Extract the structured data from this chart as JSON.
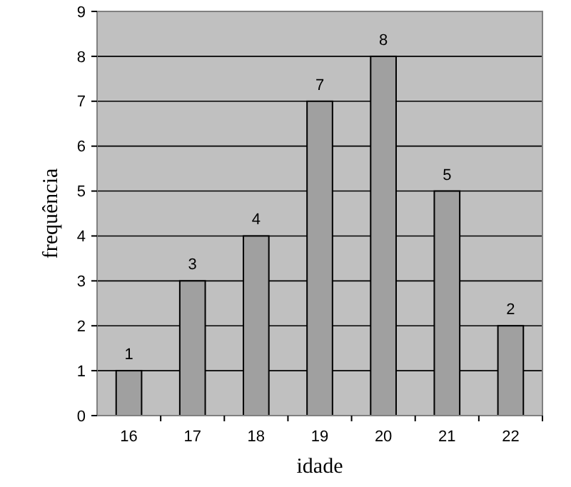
{
  "chart_data": {
    "type": "bar",
    "xlabel": "idade",
    "ylabel": "frequência",
    "categories": [
      "16",
      "17",
      "18",
      "19",
      "20",
      "21",
      "22"
    ],
    "values": [
      1,
      3,
      4,
      7,
      8,
      5,
      2
    ],
    "color": "#a0a0a0",
    "ylim": [
      0,
      9
    ],
    "yticks": [
      0,
      1,
      2,
      3,
      4,
      5,
      6,
      7,
      8,
      9
    ],
    "grid": "y",
    "data_labels": true
  }
}
